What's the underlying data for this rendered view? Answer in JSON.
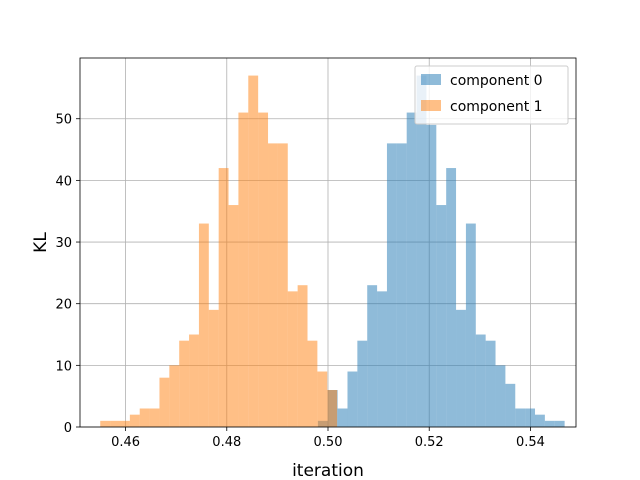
{
  "chart_data": {
    "type": "bar",
    "title": "",
    "xlabel": "iteration",
    "ylabel": "KL",
    "xlim": [
      0.451,
      0.549
    ],
    "ylim": [
      0,
      59.85
    ],
    "xticks": [
      0.46,
      0.48,
      0.5,
      0.52,
      0.54
    ],
    "xtick_labels": [
      "0.46",
      "0.48",
      "0.50",
      "0.52",
      "0.54"
    ],
    "yticks": [
      0,
      10,
      20,
      30,
      40,
      50
    ],
    "ytick_labels": [
      "0",
      "10",
      "20",
      "30",
      "40",
      "50"
    ],
    "grid": true,
    "legend_position": "top-right",
    "series": [
      {
        "name": "component 0",
        "color": "#1f77b4",
        "opacity": 0.5,
        "bin_start": 0.498,
        "bin_width": 0.00195,
        "values": [
          1,
          6,
          3,
          9,
          14,
          23,
          22,
          46,
          46,
          51,
          57,
          49,
          36,
          42,
          19,
          33,
          15,
          14,
          10,
          7,
          3,
          3,
          2,
          1,
          1
        ]
      },
      {
        "name": "component 1",
        "color": "#ff7f0e",
        "opacity": 0.5,
        "bin_start": 0.455,
        "bin_width": 0.00195,
        "values": [
          1,
          1,
          1,
          2,
          3,
          3,
          8,
          10,
          14,
          15,
          33,
          19,
          42,
          36,
          51,
          57,
          51,
          46,
          46,
          22,
          23,
          14,
          9,
          6
        ]
      }
    ]
  }
}
